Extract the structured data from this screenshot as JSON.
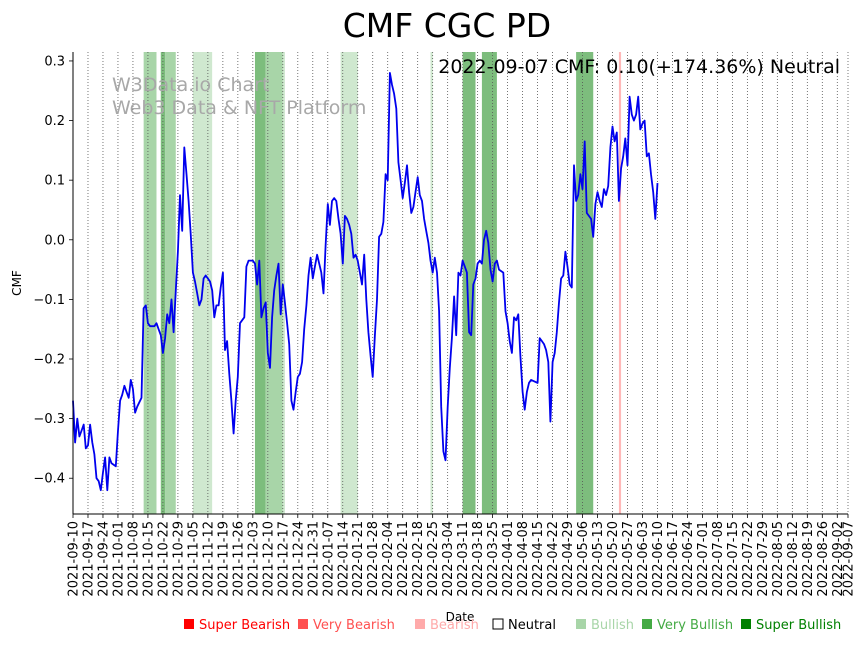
{
  "chart_data": {
    "type": "line",
    "title": "CMF CGC PD",
    "xlabel": "Date",
    "ylabel": "CMF",
    "annotation": "2022-09-07 CMF: 0.10(+174.36%) Neutral",
    "watermark": [
      "W3Data.io Chart",
      "Web3 Data & NFT Platform"
    ],
    "ylim": [
      -0.46,
      0.315
    ],
    "xlim": [
      "2021-09-10",
      "2022-09-07"
    ],
    "yticks": [
      -0.4,
      -0.3,
      -0.2,
      -0.1,
      0.0,
      0.1,
      0.2,
      0.3
    ],
    "ytick_labels": [
      "−0.4",
      "−0.3",
      "−0.2",
      "−0.1",
      "0.0",
      "0.1",
      "0.2",
      "0.3"
    ],
    "xtick_labels": [
      "2021-09-10",
      "2021-09-17",
      "2021-09-24",
      "2021-10-01",
      "2021-10-08",
      "2021-10-15",
      "2021-10-22",
      "2021-10-29",
      "2021-11-05",
      "2021-11-12",
      "2021-11-19",
      "2021-11-26",
      "2021-12-03",
      "2021-12-10",
      "2021-12-17",
      "2021-12-24",
      "2021-12-31",
      "2022-01-07",
      "2022-01-14",
      "2022-01-21",
      "2022-01-28",
      "2022-02-04",
      "2022-02-11",
      "2022-02-18",
      "2022-02-25",
      "2022-03-04",
      "2022-03-11",
      "2022-03-18",
      "2022-03-25",
      "2022-04-01",
      "2022-04-08",
      "2022-04-15",
      "2022-04-22",
      "2022-04-29",
      "2022-05-06",
      "2022-05-13",
      "2022-05-20",
      "2022-05-27",
      "2022-06-03",
      "2022-06-10",
      "2022-06-17",
      "2022-06-24",
      "2022-07-01",
      "2022-07-08",
      "2022-07-15",
      "2022-07-22",
      "2022-07-29",
      "2022-08-05",
      "2022-08-12",
      "2022-08-19",
      "2022-08-26",
      "2022-09-02",
      "2022-09-07"
    ],
    "grid": "vertical dotted at each date tick",
    "series": [
      {
        "name": "CMF",
        "color": "#0000ee",
        "points": [
          [
            0,
            -0.27
          ],
          [
            1,
            -0.34
          ],
          [
            2,
            -0.3
          ],
          [
            3,
            -0.33
          ],
          [
            4,
            -0.32
          ],
          [
            5,
            -0.31
          ],
          [
            6,
            -0.35
          ],
          [
            7,
            -0.345
          ],
          [
            8,
            -0.31
          ],
          [
            9,
            -0.34
          ],
          [
            10,
            -0.36
          ],
          [
            11,
            -0.4
          ],
          [
            12,
            -0.405
          ],
          [
            13,
            -0.42
          ],
          [
            14,
            -0.39
          ],
          [
            15,
            -0.365
          ],
          [
            16,
            -0.42
          ],
          [
            17,
            -0.365
          ],
          [
            18,
            -0.375
          ],
          [
            20,
            -0.38
          ],
          [
            21,
            -0.32
          ],
          [
            22,
            -0.27
          ],
          [
            23,
            -0.26
          ],
          [
            24,
            -0.245
          ],
          [
            25,
            -0.255
          ],
          [
            26,
            -0.265
          ],
          [
            27,
            -0.235
          ],
          [
            28,
            -0.25
          ],
          [
            29,
            -0.29
          ],
          [
            30,
            -0.28
          ],
          [
            32,
            -0.265
          ],
          [
            33,
            -0.115
          ],
          [
            34,
            -0.11
          ],
          [
            35,
            -0.14
          ],
          [
            36,
            -0.145
          ],
          [
            38,
            -0.145
          ],
          [
            39,
            -0.14
          ],
          [
            40,
            -0.15
          ],
          [
            41,
            -0.16
          ],
          [
            42,
            -0.19
          ],
          [
            43,
            -0.165
          ],
          [
            44,
            -0.125
          ],
          [
            45,
            -0.14
          ],
          [
            46,
            -0.1
          ],
          [
            47,
            -0.155
          ],
          [
            48,
            -0.085
          ],
          [
            49,
            -0.02
          ],
          [
            50,
            0.075
          ],
          [
            51,
            0.015
          ],
          [
            52,
            0.155
          ],
          [
            53,
            0.11
          ],
          [
            54,
            0.065
          ],
          [
            55,
            0.01
          ],
          [
            56,
            -0.055
          ],
          [
            57,
            -0.07
          ],
          [
            58,
            -0.09
          ],
          [
            59,
            -0.11
          ],
          [
            60,
            -0.1
          ],
          [
            61,
            -0.065
          ],
          [
            62,
            -0.06
          ],
          [
            63,
            -0.065
          ],
          [
            64,
            -0.07
          ],
          [
            65,
            -0.085
          ],
          [
            66,
            -0.13
          ],
          [
            67,
            -0.11
          ],
          [
            68,
            -0.11
          ],
          [
            69,
            -0.08
          ],
          [
            70,
            -0.055
          ],
          [
            71,
            -0.185
          ],
          [
            72,
            -0.17
          ],
          [
            73,
            -0.225
          ],
          [
            74,
            -0.27
          ],
          [
            75,
            -0.325
          ],
          [
            76,
            -0.27
          ],
          [
            77,
            -0.23
          ],
          [
            78,
            -0.14
          ],
          [
            79,
            -0.135
          ],
          [
            80,
            -0.13
          ],
          [
            81,
            -0.045
          ],
          [
            82,
            -0.035
          ],
          [
            84,
            -0.035
          ],
          [
            85,
            -0.04
          ],
          [
            86,
            -0.075
          ],
          [
            87,
            -0.035
          ],
          [
            88,
            -0.13
          ],
          [
            89,
            -0.115
          ],
          [
            90,
            -0.105
          ],
          [
            91,
            -0.19
          ],
          [
            92,
            -0.215
          ],
          [
            93,
            -0.13
          ],
          [
            94,
            -0.085
          ],
          [
            95,
            -0.06
          ],
          [
            96,
            -0.04
          ],
          [
            97,
            -0.125
          ],
          [
            98,
            -0.075
          ],
          [
            99,
            -0.105
          ],
          [
            100,
            -0.14
          ],
          [
            101,
            -0.175
          ],
          [
            102,
            -0.27
          ],
          [
            103,
            -0.285
          ],
          [
            104,
            -0.255
          ],
          [
            105,
            -0.23
          ],
          [
            106,
            -0.225
          ],
          [
            107,
            -0.205
          ],
          [
            108,
            -0.15
          ],
          [
            109,
            -0.11
          ],
          [
            110,
            -0.06
          ],
          [
            111,
            -0.03
          ],
          [
            112,
            -0.065
          ],
          [
            113,
            -0.045
          ],
          [
            114,
            -0.025
          ],
          [
            115,
            -0.04
          ],
          [
            116,
            -0.055
          ],
          [
            117,
            -0.09
          ],
          [
            118,
            -0.01
          ],
          [
            119,
            0.06
          ],
          [
            120,
            0.025
          ],
          [
            121,
            0.065
          ],
          [
            122,
            0.07
          ],
          [
            123,
            0.065
          ],
          [
            124,
            0.035
          ],
          [
            125,
            0.01
          ],
          [
            126,
            -0.04
          ],
          [
            127,
            0.04
          ],
          [
            128,
            0.035
          ],
          [
            129,
            0.025
          ],
          [
            130,
            0.01
          ],
          [
            131,
            -0.03
          ],
          [
            132,
            -0.025
          ],
          [
            133,
            -0.035
          ],
          [
            134,
            -0.055
          ],
          [
            135,
            -0.075
          ],
          [
            136,
            -0.025
          ],
          [
            137,
            -0.1
          ],
          [
            138,
            -0.155
          ],
          [
            139,
            -0.195
          ],
          [
            140,
            -0.23
          ],
          [
            141,
            -0.16
          ],
          [
            142,
            -0.1
          ],
          [
            143,
            0.005
          ],
          [
            144,
            0.01
          ],
          [
            145,
            0.03
          ],
          [
            146,
            0.11
          ],
          [
            147,
            0.1
          ],
          [
            148,
            0.28
          ],
          [
            149,
            0.26
          ],
          [
            150,
            0.245
          ],
          [
            151,
            0.22
          ],
          [
            152,
            0.13
          ],
          [
            153,
            0.1
          ],
          [
            154,
            0.07
          ],
          [
            155,
            0.095
          ],
          [
            156,
            0.125
          ],
          [
            157,
            0.08
          ],
          [
            158,
            0.045
          ],
          [
            159,
            0.055
          ],
          [
            160,
            0.08
          ],
          [
            161,
            0.105
          ],
          [
            162,
            0.075
          ],
          [
            163,
            0.065
          ],
          [
            164,
            0.035
          ],
          [
            165,
            0.015
          ],
          [
            166,
            -0.005
          ],
          [
            167,
            -0.035
          ],
          [
            168,
            -0.055
          ],
          [
            169,
            -0.03
          ],
          [
            170,
            -0.055
          ],
          [
            171,
            -0.12
          ],
          [
            172,
            -0.28
          ],
          [
            173,
            -0.355
          ],
          [
            174,
            -0.37
          ],
          [
            175,
            -0.28
          ],
          [
            176,
            -0.215
          ],
          [
            177,
            -0.165
          ],
          [
            178,
            -0.095
          ],
          [
            179,
            -0.16
          ],
          [
            180,
            -0.055
          ],
          [
            181,
            -0.06
          ],
          [
            182,
            -0.035
          ],
          [
            183,
            -0.045
          ],
          [
            184,
            -0.055
          ],
          [
            185,
            -0.155
          ],
          [
            186,
            -0.16
          ],
          [
            187,
            -0.075
          ],
          [
            188,
            -0.065
          ],
          [
            189,
            -0.04
          ],
          [
            190,
            -0.035
          ],
          [
            191,
            -0.04
          ],
          [
            192,
            0.0
          ],
          [
            193,
            0.015
          ],
          [
            194,
            -0.005
          ],
          [
            195,
            -0.05
          ],
          [
            196,
            -0.07
          ],
          [
            197,
            -0.04
          ],
          [
            198,
            -0.035
          ],
          [
            199,
            -0.05
          ],
          [
            201,
            -0.055
          ],
          [
            202,
            -0.12
          ],
          [
            203,
            -0.14
          ],
          [
            204,
            -0.17
          ],
          [
            205,
            -0.19
          ],
          [
            206,
            -0.13
          ],
          [
            207,
            -0.135
          ],
          [
            208,
            -0.125
          ],
          [
            209,
            -0.195
          ],
          [
            210,
            -0.255
          ],
          [
            211,
            -0.285
          ],
          [
            212,
            -0.255
          ],
          [
            213,
            -0.24
          ],
          [
            214,
            -0.235
          ],
          [
            217,
            -0.24
          ],
          [
            218,
            -0.165
          ],
          [
            219,
            -0.17
          ],
          [
            220,
            -0.175
          ],
          [
            221,
            -0.185
          ],
          [
            222,
            -0.205
          ],
          [
            223,
            -0.305
          ],
          [
            224,
            -0.205
          ],
          [
            225,
            -0.19
          ],
          [
            226,
            -0.155
          ],
          [
            227,
            -0.105
          ],
          [
            228,
            -0.065
          ],
          [
            229,
            -0.06
          ],
          [
            230,
            -0.02
          ],
          [
            231,
            -0.045
          ],
          [
            232,
            -0.075
          ],
          [
            233,
            -0.08
          ],
          [
            234,
            0.125
          ],
          [
            235,
            0.065
          ],
          [
            236,
            0.075
          ],
          [
            237,
            0.11
          ],
          [
            238,
            0.085
          ],
          [
            239,
            0.165
          ],
          [
            240,
            0.045
          ],
          [
            242,
            0.035
          ],
          [
            243,
            0.005
          ],
          [
            244,
            0.06
          ],
          [
            245,
            0.08
          ],
          [
            246,
            0.065
          ],
          [
            247,
            0.055
          ],
          [
            248,
            0.085
          ],
          [
            249,
            0.075
          ],
          [
            250,
            0.09
          ],
          [
            251,
            0.155
          ],
          [
            252,
            0.19
          ],
          [
            253,
            0.165
          ],
          [
            254,
            0.18
          ],
          [
            255,
            0.065
          ],
          [
            256,
            0.12
          ],
          [
            257,
            0.14
          ],
          [
            258,
            0.17
          ],
          [
            259,
            0.125
          ],
          [
            260,
            0.24
          ],
          [
            261,
            0.21
          ],
          [
            262,
            0.2
          ],
          [
            263,
            0.21
          ],
          [
            264,
            0.24
          ],
          [
            265,
            0.185
          ],
          [
            266,
            0.195
          ],
          [
            267,
            0.2
          ],
          [
            268,
            0.14
          ],
          [
            269,
            0.145
          ],
          [
            270,
            0.11
          ],
          [
            271,
            0.08
          ],
          [
            272,
            0.035
          ],
          [
            273,
            0.095
          ]
        ]
      }
    ],
    "bands": [
      {
        "start": 33,
        "end": 39,
        "class": "bullish"
      },
      {
        "start": 41,
        "end": 43,
        "class": "very_bullish"
      },
      {
        "start": 43,
        "end": 48,
        "class": "bullish"
      },
      {
        "start": 56,
        "end": 65,
        "class": "bullish_light"
      },
      {
        "start": 85,
        "end": 90,
        "class": "very_bullish"
      },
      {
        "start": 90,
        "end": 98,
        "class": "bullish"
      },
      {
        "start": 98,
        "end": 99,
        "class": "bullish_light"
      },
      {
        "start": 125,
        "end": 133,
        "class": "bullish_light"
      },
      {
        "start": 167,
        "end": 168,
        "class": "bullish_light"
      },
      {
        "start": 182,
        "end": 188,
        "class": "very_bullish"
      },
      {
        "start": 191,
        "end": 198,
        "class": "very_bullish"
      },
      {
        "start": 235,
        "end": 243,
        "class": "very_bullish"
      },
      {
        "start": 255,
        "end": 256,
        "class": "bearish"
      }
    ],
    "legend": [
      {
        "label": "Super Bearish",
        "color": "#ff0000"
      },
      {
        "label": "Very Bearish",
        "color": "#ff5050"
      },
      {
        "label": "Bearish",
        "color": "#ffaaaa"
      },
      {
        "label": "Neutral",
        "color": "#000000"
      },
      {
        "label": "Bullish",
        "color": "#a8d5a8"
      },
      {
        "label": "Very Bullish",
        "color": "#44aa44"
      },
      {
        "label": "Super Bullish",
        "color": "#008000"
      }
    ],
    "band_colors": {
      "bullish_light": "#cfe8cf",
      "bullish": "#a8d5a8",
      "very_bullish": "#7dbd7d",
      "bearish": "#ffb8b8"
    },
    "line_color": "#0000ee"
  }
}
